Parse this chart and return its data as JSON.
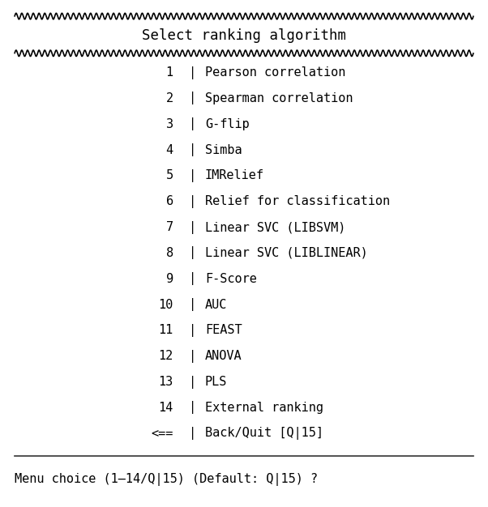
{
  "title": "Select ranking algorithm",
  "menu_items": [
    {
      "num": "1",
      "label": "Pearson correlation"
    },
    {
      "num": "2",
      "label": "Spearman correlation"
    },
    {
      "num": "3",
      "label": "G-flip"
    },
    {
      "num": "4",
      "label": "Simba"
    },
    {
      "num": "5",
      "label": "IMRelief"
    },
    {
      "num": "6",
      "label": "Relief for classification"
    },
    {
      "num": "7",
      "label": "Linear SVC (LIBSVM)"
    },
    {
      "num": "8",
      "label": "Linear SVC (LIBLINEAR)"
    },
    {
      "num": "9",
      "label": "F-Score"
    },
    {
      "num": "10",
      "label": "AUC"
    },
    {
      "num": "11",
      "label": "FEAST"
    },
    {
      "num": "12",
      "label": "ANOVA"
    },
    {
      "num": "13",
      "label": "PLS"
    },
    {
      "num": "14",
      "label": "External ranking"
    },
    {
      "num": "<==",
      "label": "Back/Quit [Q|15]"
    }
  ],
  "footer": "Menu choice (1–14/Q|15) (Default: Q|15) ?",
  "bg_color": "#ffffff",
  "text_color": "#000000",
  "font_size": 11.0,
  "title_font_size": 12.5,
  "footer_font_size": 11.0,
  "wave_color": "#000000",
  "wave_amplitude": 0.006,
  "wave_frequency": 80,
  "wave_linewidth": 1.2
}
